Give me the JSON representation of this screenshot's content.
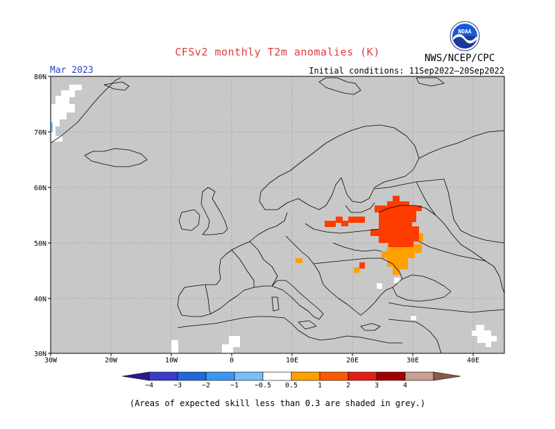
{
  "title": "CFSv2 monthly T2m anomalies (K)",
  "agency": "NWS/NCEP/CPC",
  "logo_text": "NOAA",
  "target_month": "Mar 2023",
  "initial_conditions": "Initial conditions: 11Sep2022–20Sep2022",
  "footnote": "(Areas of expected skill less than 0.3 are shaded in grey.)",
  "colors": {
    "no_skill_grey": "#c8c8c8",
    "coastline": "#000000",
    "gridline": "#8c8c8c"
  },
  "map": {
    "lon_range": [
      -30,
      45
    ],
    "lat_range": [
      30,
      80
    ],
    "lon_labels": [
      "30W",
      "20W",
      "10W",
      "0",
      "10E",
      "20E",
      "30E",
      "40E"
    ],
    "lat_labels": [
      "30N",
      "40N",
      "50N",
      "60N",
      "70N",
      "80N"
    ]
  },
  "legend": {
    "labels": [
      "−4",
      "−3",
      "−2",
      "−1",
      "−0.5",
      "0.5",
      "1",
      "2",
      "3",
      "4"
    ],
    "colors": [
      "#2a1a8a",
      "#3b3bc8",
      "#1e6ad8",
      "#3c96f0",
      "#78bef8",
      "#ffffff",
      "#ffa000",
      "#ff5a00",
      "#e01e14",
      "#a00000",
      "#c8a090",
      "#8a5a4a"
    ]
  },
  "anomaly_regions": [
    {
      "name": "belarus-ukraine",
      "value": 1.5
    },
    {
      "name": "western-russia",
      "value": 1.5
    },
    {
      "name": "poland",
      "value": 1.5
    },
    {
      "name": "ukraine-south",
      "value": 0.7
    },
    {
      "name": "moldova",
      "value": 0.7
    },
    {
      "name": "alps",
      "value": 0.7
    },
    {
      "name": "hungary",
      "value": 1.5
    },
    {
      "name": "balkans",
      "value": 0.7
    }
  ]
}
